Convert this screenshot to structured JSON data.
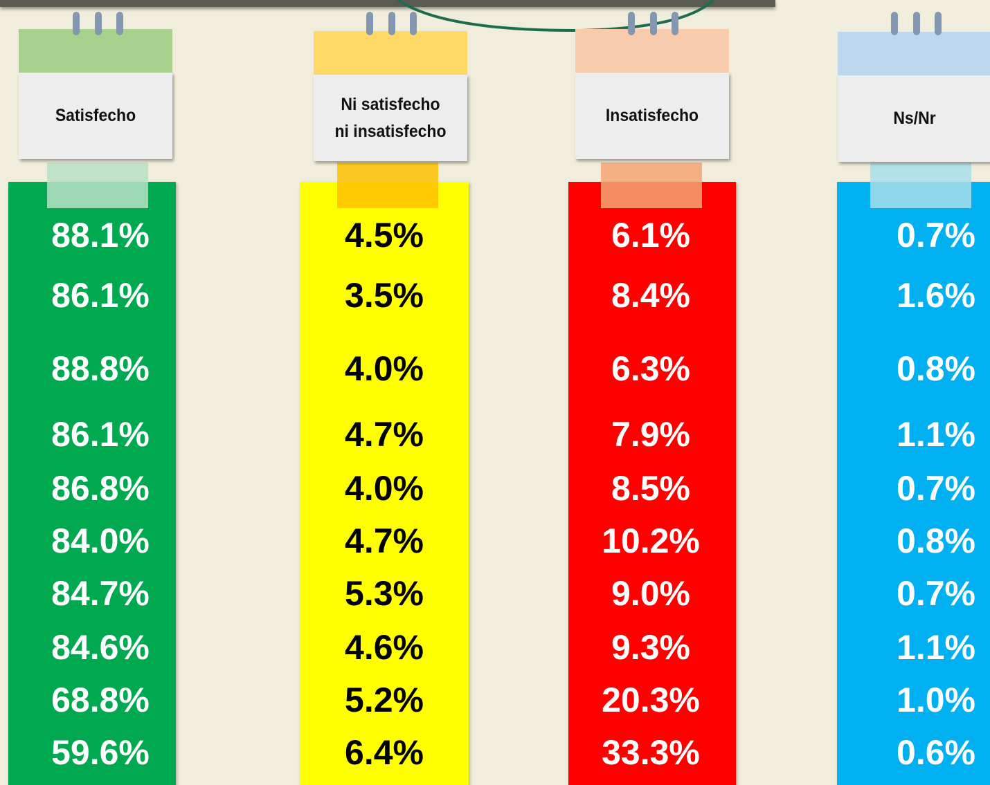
{
  "columns": [
    {
      "header": "Satisfecho",
      "values": [
        "88.1%",
        "86.1%",
        "88.8%",
        "86.1%",
        "86.8%",
        "84.0%",
        "84.7%",
        "84.6%",
        "68.8%",
        "59.6%"
      ]
    },
    {
      "header": "Ni satisfecho ni insatisfecho",
      "values": [
        "4.5%",
        "3.5%",
        "4.0%",
        "4.7%",
        "4.0%",
        "4.7%",
        "5.3%",
        "4.6%",
        "5.2%",
        "6.4%"
      ]
    },
    {
      "header": "Insatisfecho",
      "values": [
        "6.1%",
        "8.4%",
        "6.3%",
        "7.9%",
        "8.5%",
        "10.2%",
        "9.0%",
        "9.3%",
        "20.3%",
        "33.3%"
      ]
    },
    {
      "header": "Ns/Nr",
      "values": [
        "0.7%",
        "1.6%",
        "0.8%",
        "1.1%",
        "0.7%",
        "0.8%",
        "0.7%",
        "1.1%",
        "1.0%",
        "0.6%"
      ]
    }
  ]
}
